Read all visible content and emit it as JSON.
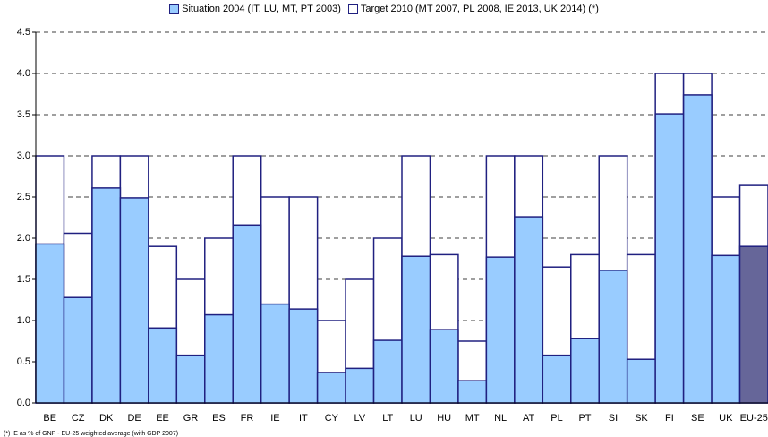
{
  "chart_data": {
    "type": "bar",
    "categories": [
      "BE",
      "CZ",
      "DK",
      "DE",
      "EE",
      "GR",
      "ES",
      "FR",
      "IE",
      "IT",
      "CY",
      "LV",
      "LT",
      "LU",
      "HU",
      "MT",
      "NL",
      "AT",
      "PL",
      "PT",
      "SI",
      "SK",
      "FI",
      "SE",
      "UK",
      "EU-25"
    ],
    "series": [
      {
        "name": "Target 2010 (MT 2007, PL 2008, IE 2013, UK 2014) (*)",
        "color": "#ffffff",
        "values": [
          3.0,
          2.06,
          3.0,
          3.0,
          1.9,
          1.5,
          2.0,
          3.0,
          2.5,
          2.5,
          1.0,
          1.5,
          2.0,
          3.0,
          1.8,
          0.75,
          3.0,
          3.0,
          1.65,
          1.8,
          3.0,
          1.8,
          4.0,
          4.0,
          2.5,
          2.64
        ]
      },
      {
        "name": "Situation 2004 (IT, LU, MT, PT 2003)",
        "color": "#99ccff",
        "colors": [
          "#99ccff",
          "#99ccff",
          "#99ccff",
          "#99ccff",
          "#99ccff",
          "#99ccff",
          "#99ccff",
          "#99ccff",
          "#99ccff",
          "#99ccff",
          "#99ccff",
          "#99ccff",
          "#99ccff",
          "#99ccff",
          "#99ccff",
          "#99ccff",
          "#99ccff",
          "#99ccff",
          "#99ccff",
          "#99ccff",
          "#99ccff",
          "#99ccff",
          "#99ccff",
          "#99ccff",
          "#99ccff",
          "#666699"
        ],
        "values": [
          1.93,
          1.28,
          2.61,
          2.49,
          0.91,
          0.58,
          1.07,
          2.16,
          1.2,
          1.14,
          0.37,
          0.42,
          0.76,
          1.78,
          0.89,
          0.27,
          1.77,
          2.26,
          0.58,
          0.78,
          1.61,
          0.53,
          3.51,
          3.74,
          1.79,
          1.9
        ]
      }
    ],
    "ylim": [
      0,
      4.5
    ],
    "yticks": [
      {
        "value": 0,
        "label": "0.0"
      },
      0.5,
      {
        "value": 1,
        "label": "1.0"
      },
      1.5,
      {
        "value": 2,
        "label": "2.0"
      },
      2.5,
      {
        "value": 3,
        "label": "3.0"
      },
      3.5,
      {
        "value": 4,
        "label": "4.0"
      },
      4.5
    ],
    "grid": true,
    "edge_color": "#202080",
    "footnote": "(*) IE as % of GNP - EU-25 weighted average (with GDP 2007)"
  }
}
